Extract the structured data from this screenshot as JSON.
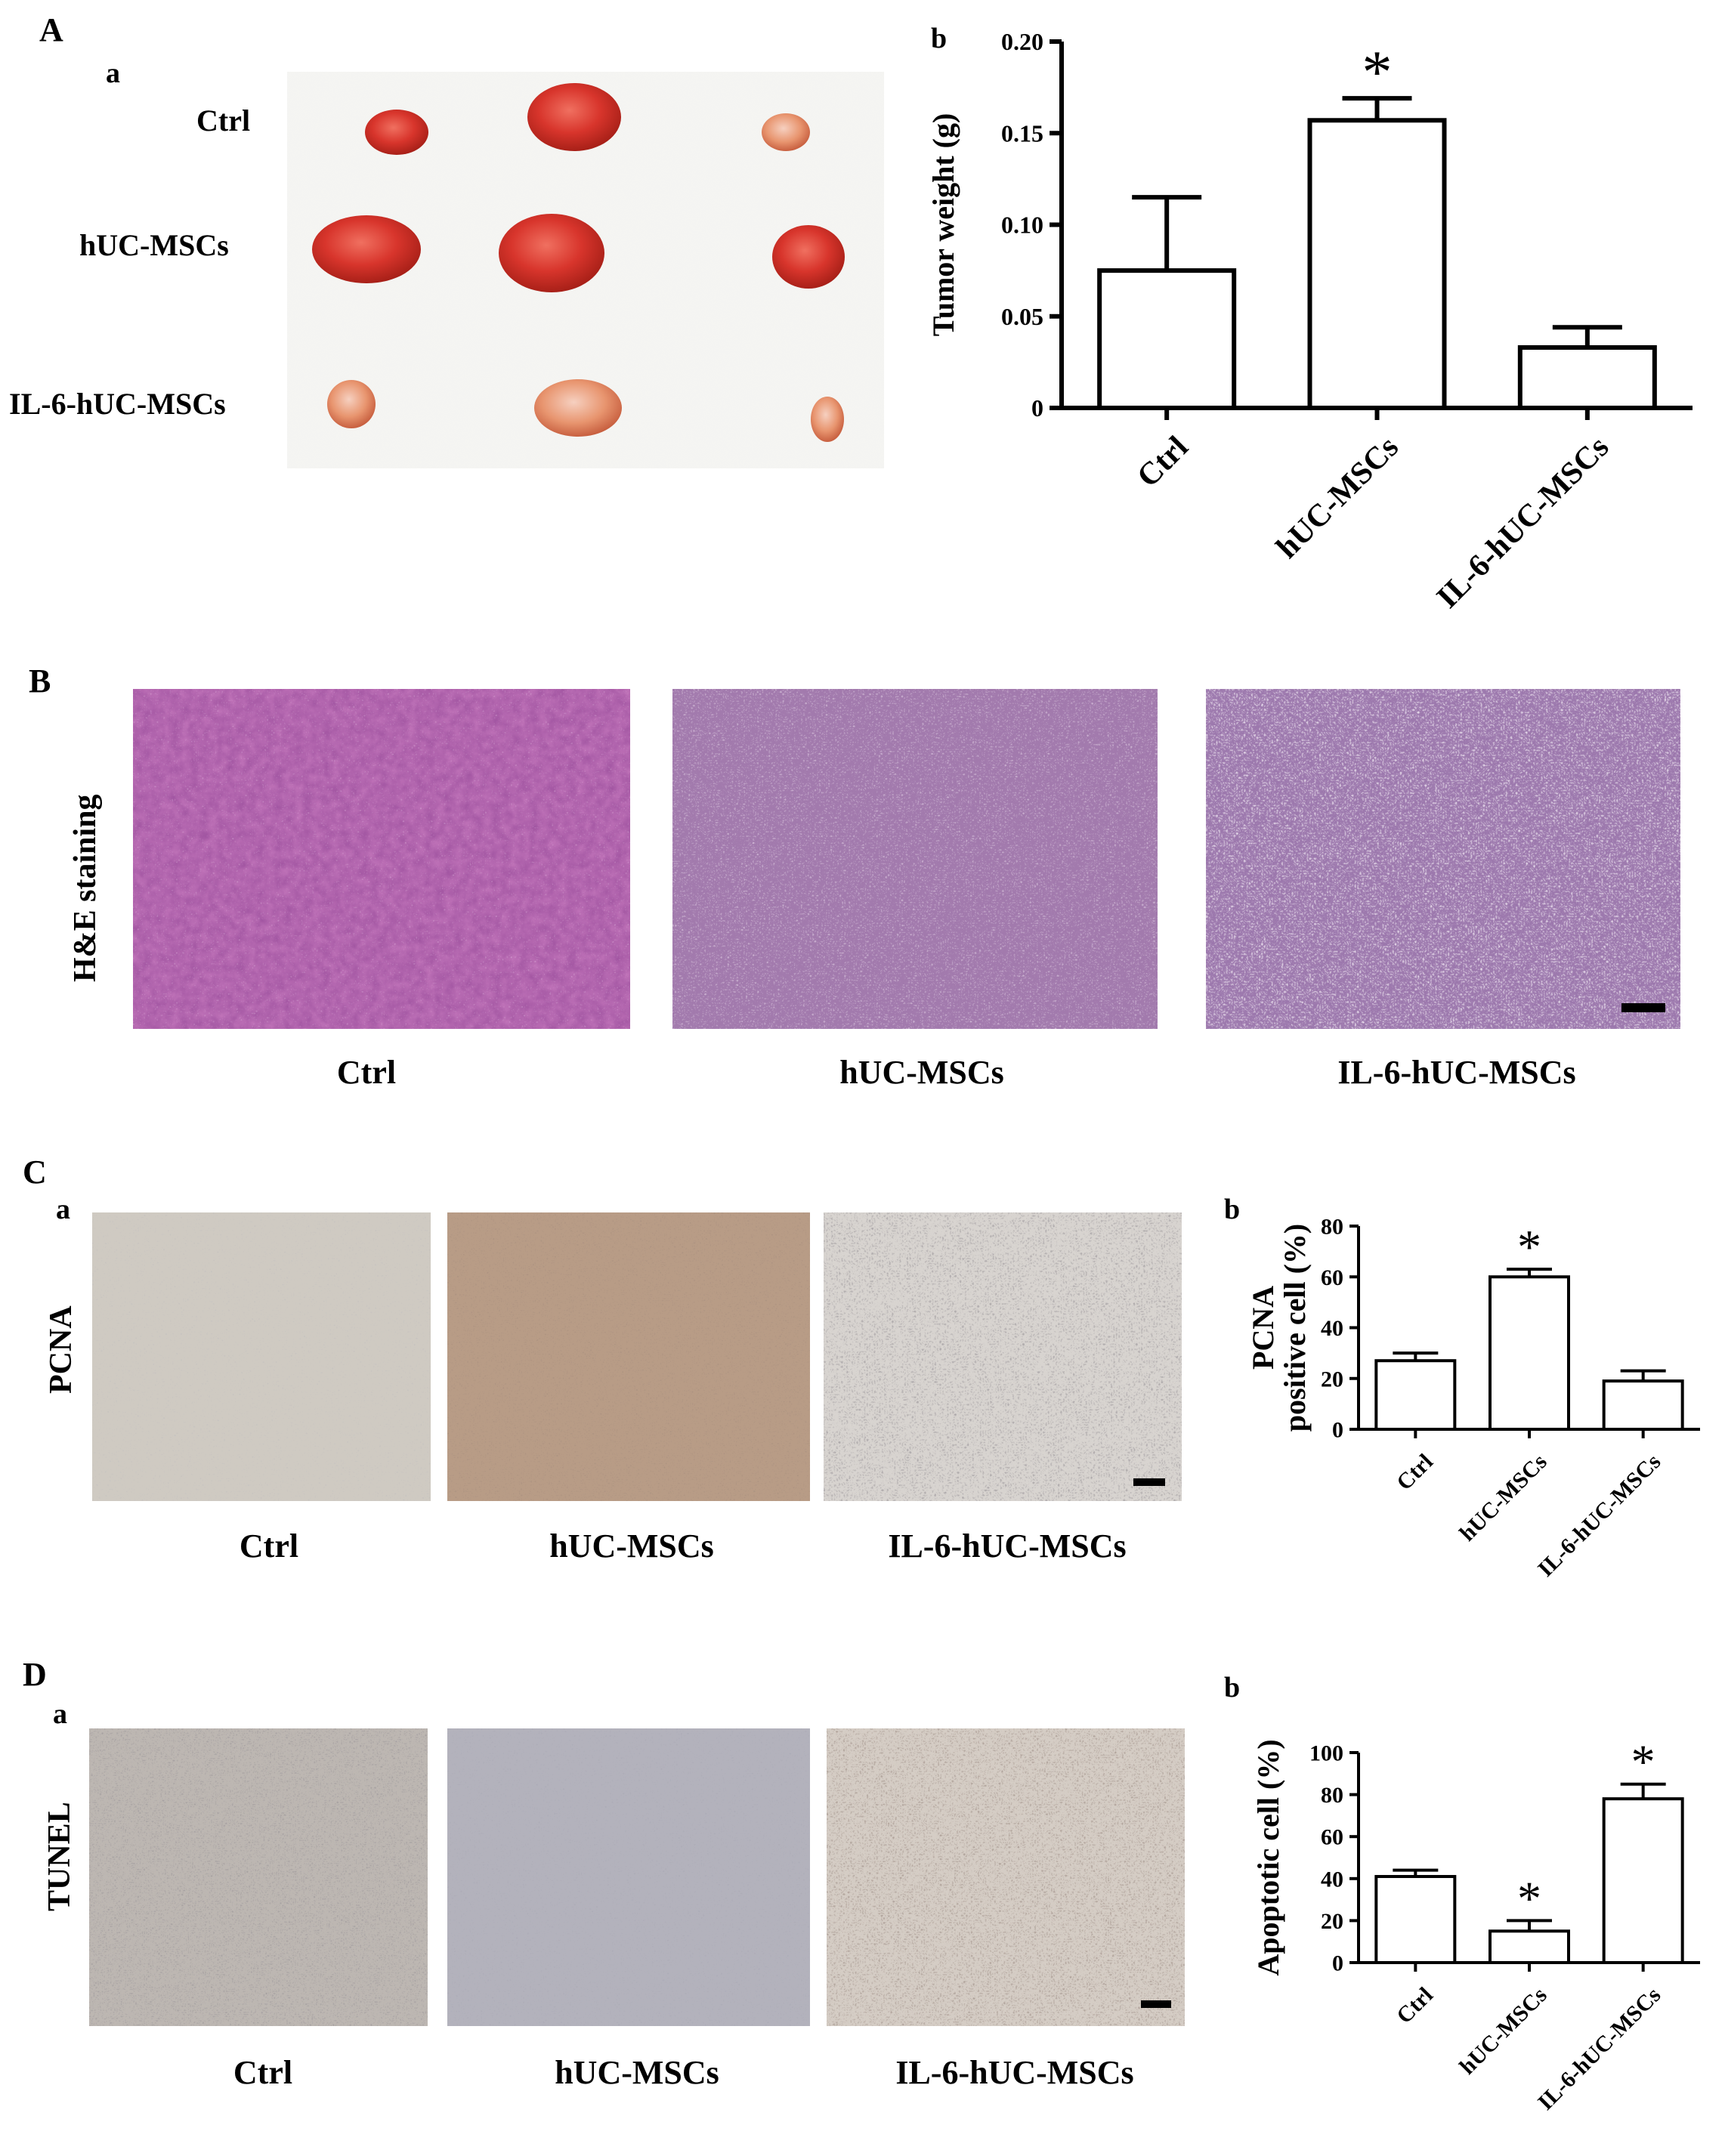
{
  "panels": {
    "A": {
      "letter": "A",
      "a": {
        "letter": "a",
        "row_labels": [
          "Ctrl",
          "hUC-MSCs",
          "IL-6-hUC-MSCs"
        ]
      },
      "b": {
        "letter": "b"
      }
    },
    "B": {
      "letter": "B",
      "side_label": "H&E staining",
      "captions": [
        "Ctrl",
        "hUC-MSCs",
        "IL-6-hUC-MSCs"
      ]
    },
    "C": {
      "letter": "C",
      "a": {
        "letter": "a",
        "side_label": "PCNA",
        "captions": [
          "Ctrl",
          "hUC-MSCs",
          "IL-6-hUC-MSCs"
        ]
      },
      "b": {
        "letter": "b"
      }
    },
    "D": {
      "letter": "D",
      "a": {
        "letter": "a",
        "side_label": "TUNEL",
        "captions": [
          "Ctrl",
          "hUC-MSCs",
          "IL-6-hUC-MSCs"
        ]
      },
      "b": {
        "letter": "b"
      }
    }
  },
  "colors": {
    "tumor": "#d8352c",
    "he_stain": "#8e4aa0",
    "ihc_brown": "#8a6a50",
    "ihc_bg": "#d9d4cf"
  },
  "chart_data": [
    {
      "id": "A-b",
      "type": "bar",
      "categories": [
        "Ctrl",
        "hUC-MSCs",
        "IL-6-hUC-MSCs"
      ],
      "values": [
        0.075,
        0.157,
        0.033
      ],
      "errors": [
        0.04,
        0.012,
        0.011
      ],
      "significance": [
        "",
        "*",
        ""
      ],
      "ylabel": "Tumor weight (g)",
      "ylim": [
        0,
        0.2
      ],
      "yticks": [
        "0",
        "0.05",
        "0.10",
        "0.15",
        "0.20"
      ],
      "ytick_values": [
        0,
        0.05,
        0.1,
        0.15,
        0.2
      ],
      "grid": false
    },
    {
      "id": "C-b",
      "type": "bar",
      "categories": [
        "Ctrl",
        "hUC-MSCs",
        "IL-6-hUC-MSCs"
      ],
      "values": [
        27,
        60,
        19
      ],
      "errors": [
        3,
        3,
        4
      ],
      "significance": [
        "",
        "*",
        ""
      ],
      "ylabel_lines": [
        "PCNA",
        "positive cell (%)"
      ],
      "ylim": [
        0,
        80
      ],
      "yticks": [
        "0",
        "20",
        "40",
        "60",
        "80"
      ],
      "ytick_values": [
        0,
        20,
        40,
        60,
        80
      ],
      "grid": false
    },
    {
      "id": "D-b",
      "type": "bar",
      "categories": [
        "Ctrl",
        "hUC-MSCs",
        "IL-6-hUC-MSCs"
      ],
      "values": [
        41,
        15,
        78
      ],
      "errors": [
        3,
        5,
        7
      ],
      "significance": [
        "",
        "*",
        "*"
      ],
      "ylabel": "Apoptotic cell (%)",
      "ylim": [
        0,
        100
      ],
      "yticks": [
        "0",
        "20",
        "40",
        "60",
        "80",
        "100"
      ],
      "ytick_values": [
        0,
        20,
        40,
        60,
        80,
        100
      ],
      "grid": false
    }
  ]
}
